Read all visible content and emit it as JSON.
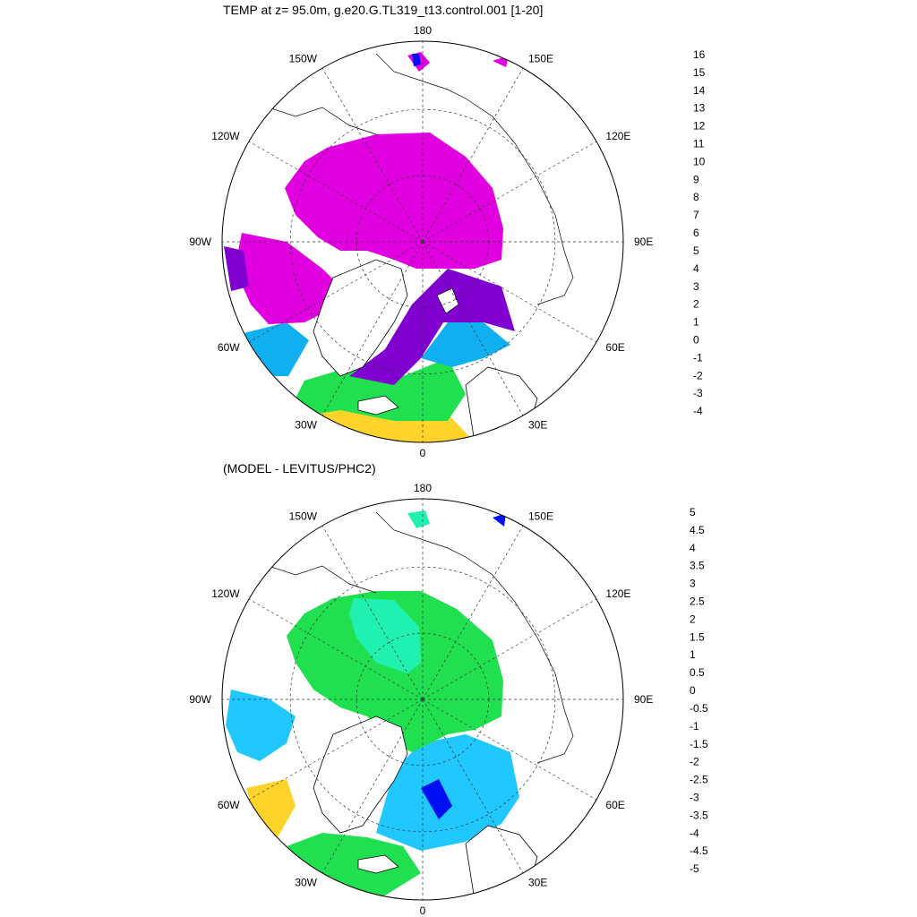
{
  "panels": [
    {
      "title": "TEMP at z=  95.0m, g.e20.G.TL319_t13.control.001 [1-20]",
      "meridian_labels": [
        "180",
        "150E",
        "120E",
        "90E",
        "60E",
        "30E",
        "0",
        "30W",
        "60W",
        "90W",
        "120W",
        "150W"
      ],
      "colorbar": {
        "labels": [
          "16",
          "15",
          "14",
          "13",
          "12",
          "11",
          "10",
          "9",
          "8",
          "7",
          "6",
          "5",
          "4",
          "3",
          "2",
          "1",
          "0",
          "-1",
          "-2",
          "-3",
          "-4"
        ],
        "colors": [
          "#c00000",
          "#e00000",
          "#ff2000",
          "#ff4a00",
          "#ff8000",
          "#ff9f2e",
          "#ffb63c",
          "#ffd42a",
          "#ffff00",
          "#6cd000",
          "#20e050",
          "#20f0b0",
          "#30f0f0",
          "#20d0ff",
          "#10b0f0",
          "#0080f0",
          "#0010f0",
          "#8000d0",
          "#e000e0",
          "#d0d0d0",
          "#707070"
        ]
      },
      "palette": {
        "land": "#ffffff",
        "arctic_basin": "#e000e0",
        "atlantic_inflow": "#8000d0",
        "norwegian_sea": "#10b0f0",
        "north_atlantic": "#20e050",
        "subpolar": "#ffd42a"
      }
    },
    {
      "title": "(MODEL - LEVITUS/PHC2)",
      "meridian_labels": [
        "180",
        "150E",
        "120E",
        "90E",
        "60E",
        "30E",
        "0",
        "30W",
        "60W",
        "90W",
        "120W",
        "150W"
      ],
      "colorbar": {
        "labels": [
          "5",
          "4.5",
          "4",
          "3.5",
          "3",
          "2.5",
          "2",
          "1.5",
          "1",
          "0.5",
          "0",
          "-0.5",
          "-1",
          "-1.5",
          "-2",
          "-2.5",
          "-3",
          "-3.5",
          "-4",
          "-4.5",
          "-5"
        ],
        "colors": [
          "#c00000",
          "#e00000",
          "#ff2000",
          "#ff4a00",
          "#ff8000",
          "#ff9f2e",
          "#ffb63c",
          "#ffd42a",
          "#ffff00",
          "#60e000",
          "#20e050",
          "#20f0b0",
          "#30e0f0",
          "#20c8ff",
          "#10a8f0",
          "#0070f0",
          "#0010f0",
          "#8000d0",
          "#e000e0",
          "#d0d0d0",
          "#707070"
        ]
      },
      "palette": {
        "land": "#ffffff",
        "arctic_basin": "#20e050",
        "central_anomaly": "#20f0b0",
        "nordic_seas": "#20c8ff",
        "cold_patch": "#0010f0",
        "warm_edge": "#ffd42a"
      }
    }
  ]
}
